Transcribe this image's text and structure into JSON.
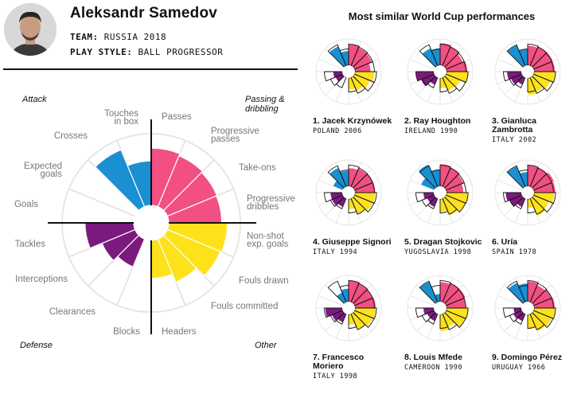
{
  "player": {
    "name": "Aleksandr Samedov",
    "team_label": "TEAM:",
    "team_value": "RUSSIA 2018",
    "style_label": "PLAY STYLE:",
    "style_value": "BALL PROGRESSOR"
  },
  "colors": {
    "attack": "#1a8fd1",
    "passing": "#f24f82",
    "other": "#fde11b",
    "defense": "#7b1a7e",
    "grid": "#e6e6e6",
    "axis": "#111111"
  },
  "chart_data": {
    "type": "polar-bar",
    "title": "Aleksandr Samedov",
    "value_scale": "fraction of maximum (0-1)",
    "groups": [
      {
        "name": "Passing & dribbling",
        "color_key": "passing"
      },
      {
        "name": "Other",
        "color_key": "other"
      },
      {
        "name": "Defense",
        "color_key": "defense"
      },
      {
        "name": "Attack",
        "color_key": "attack"
      }
    ],
    "categories": [
      {
        "label": [
          "Passes"
        ],
        "group": "Passing & dribbling",
        "value": 0.8
      },
      {
        "label": [
          "Progressive",
          "passes"
        ],
        "group": "Passing & dribbling",
        "value": 0.77
      },
      {
        "label": [
          "Take-ons"
        ],
        "group": "Passing & dribbling",
        "value": 0.75
      },
      {
        "label": [
          "Progressive",
          "dribbles"
        ],
        "group": "Passing & dribbling",
        "value": 0.74
      },
      {
        "label": [
          "Non-shot",
          "exp. goals"
        ],
        "group": "Other",
        "value": 0.82
      },
      {
        "label": [
          "Fouls drawn"
        ],
        "group": "Other",
        "value": 0.8
      },
      {
        "label": [
          "Fouls committed"
        ],
        "group": "Other",
        "value": 0.65
      },
      {
        "label": [
          "Headers"
        ],
        "group": "Other",
        "value": 0.53
      },
      {
        "label": [
          "Blocks"
        ],
        "group": "Defense",
        "value": 0.0
      },
      {
        "label": [
          "Clearances"
        ],
        "group": "Defense",
        "value": 0.42
      },
      {
        "label": [
          "Interceptions"
        ],
        "group": "Defense",
        "value": 0.5
      },
      {
        "label": [
          "Tackles"
        ],
        "group": "Defense",
        "value": 0.68
      },
      {
        "label": [
          "Goals"
        ],
        "group": "Attack",
        "value": 0.0
      },
      {
        "label": [
          "Expected",
          "goals"
        ],
        "group": "Attack",
        "value": 0.0
      },
      {
        "label": [
          "Crosses"
        ],
        "group": "Attack",
        "value": 0.86
      },
      {
        "label": [
          "Touches",
          "in box"
        ],
        "group": "Attack",
        "value": 0.62
      }
    ],
    "group_labels": {
      "attack": "Attack",
      "passing": [
        "Passing &",
        "dribbling"
      ],
      "defense": "Defense",
      "other": "Other"
    }
  },
  "similar": {
    "title": "Most similar World Cup performances",
    "players": [
      {
        "rank_name": [
          "1. Jacek Krzynówek"
        ],
        "team": "POLAND 2006",
        "values": [
          0.8,
          0.75,
          0.72,
          0.6,
          0.75,
          0.65,
          0.55,
          0.45,
          0,
          0,
          0.3,
          0.35,
          0,
          0,
          0.8,
          0.55
        ]
      },
      {
        "rank_name": [
          "2. Ray Houghton"
        ],
        "team": "IRELAND 1990",
        "values": [
          0.85,
          0.8,
          0.7,
          0.8,
          0.85,
          0.6,
          0.55,
          0.4,
          0,
          0.3,
          0.55,
          0.7,
          0,
          0,
          0.72,
          0.65
        ]
      },
      {
        "rank_name": [
          "3. Gianluca",
          "Zambrotta"
        ],
        "team": "ITALY 2002",
        "values": [
          0.75,
          0.8,
          0.8,
          0.8,
          0.82,
          0.7,
          0.6,
          0.65,
          0,
          0.3,
          0.45,
          0.55,
          0,
          0,
          0.85,
          0.62
        ]
      },
      {
        "rank_name": [
          "4. Giuseppe Signori"
        ],
        "team": "ITALY 1994",
        "values": [
          0.7,
          0.75,
          0.78,
          0.78,
          0.78,
          0.75,
          0.65,
          0.4,
          0,
          0.35,
          0.45,
          0.45,
          0,
          0.4,
          0.78,
          0.6
        ]
      },
      {
        "rank_name": [
          "5. Dragan Stojkovic"
        ],
        "team": "YUGOSLAVIA 1998",
        "values": [
          0.85,
          0.8,
          0.72,
          0.65,
          0.85,
          0.8,
          0.7,
          0.5,
          0,
          0.35,
          0.3,
          0.4,
          0,
          0.55,
          0.92,
          0.65
        ]
      },
      {
        "rank_name": [
          "6. Uría"
        ],
        "team": "SPAIN 1978",
        "values": [
          0.8,
          0.8,
          0.85,
          0.82,
          0.78,
          0.65,
          0.72,
          0.35,
          0,
          0.35,
          0.5,
          0.6,
          0,
          0,
          0.85,
          0.55
        ]
      },
      {
        "rank_name": [
          "7. Francesco",
          "Moriero"
        ],
        "team": "ITALY 1998",
        "values": [
          0.82,
          0.78,
          0.75,
          0.8,
          0.8,
          0.75,
          0.65,
          0.4,
          0,
          0.35,
          0.45,
          0.65,
          0,
          0,
          0.4,
          0.5
        ]
      },
      {
        "rank_name": [
          "8. Louis Mfede"
        ],
        "team": "CAMEROON 1990",
        "values": [
          0.75,
          0.8,
          0.8,
          0.75,
          0.85,
          0.78,
          0.55,
          0.65,
          0,
          0.3,
          0.3,
          0.4,
          0,
          0,
          0.85,
          0.3
        ]
      },
      {
        "rank_name": [
          "9. Domingo Pérez"
        ],
        "team": "URUGUAY 1966",
        "values": [
          0.78,
          0.7,
          0.75,
          0.8,
          0.82,
          0.75,
          0.72,
          0.55,
          0,
          0.3,
          0.35,
          0.3,
          0,
          0,
          0.8,
          0.7
        ]
      }
    ]
  }
}
